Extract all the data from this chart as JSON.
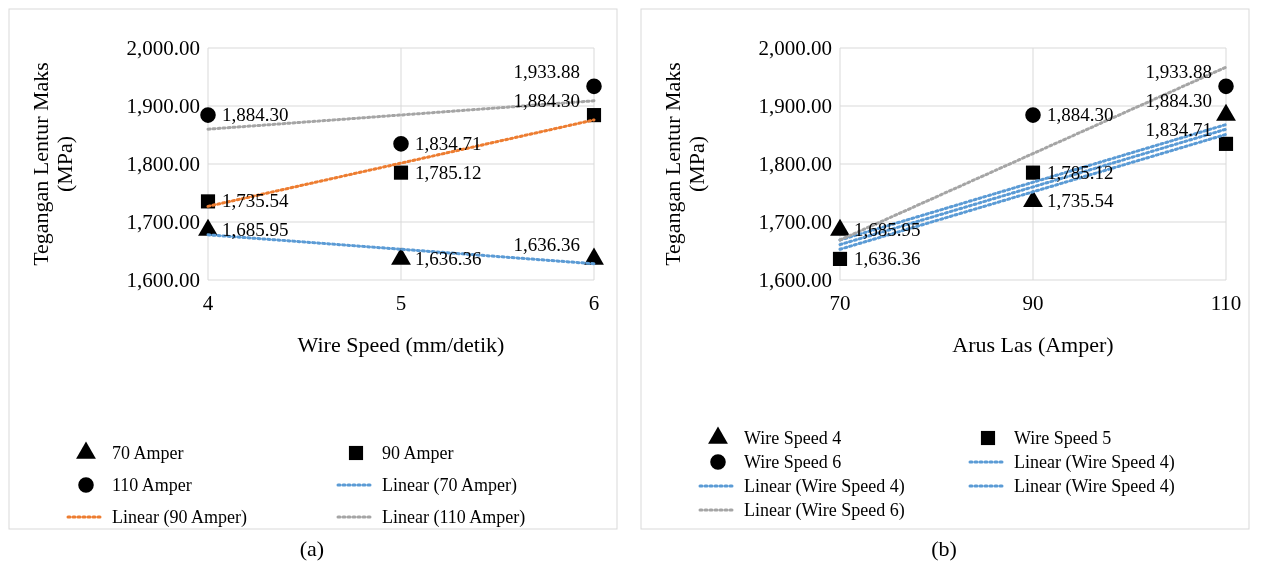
{
  "chart_data": [
    {
      "type": "scatter",
      "xlabel": "Wire Speed (mm/detik)",
      "ylabel": "Tegangan Lentur Maks (MPa)",
      "xlim": [
        4,
        6
      ],
      "xticks": [
        4,
        5,
        6
      ],
      "ylim": [
        1600,
        2000
      ],
      "yticks": [
        {
          "value": 1600,
          "label": "1,600.00"
        },
        {
          "value": 1700,
          "label": "1,700.00"
        },
        {
          "value": 1800,
          "label": "1,800.00"
        },
        {
          "value": 1900,
          "label": "1,900.00"
        },
        {
          "value": 2000,
          "label": "2,000.00"
        }
      ],
      "grid": true,
      "legend": "bottom",
      "annotations": [
        "(a)"
      ],
      "series": [
        {
          "name": "70 Amper",
          "marker": "triangle",
          "color": "#000000",
          "x": [
            4,
            5,
            6
          ],
          "values": [
            1685.95,
            1636.36,
            1636.36
          ],
          "value_labels": [
            "1,685.95",
            "1,636.36",
            "1,636.36"
          ]
        },
        {
          "name": "90 Amper",
          "marker": "square",
          "color": "#000000",
          "x": [
            4,
            5,
            6
          ],
          "values": [
            1735.54,
            1785.12,
            1884.3
          ],
          "value_labels": [
            "1,735.54",
            "1,785.12",
            "1,884.30"
          ]
        },
        {
          "name": "110 Amper",
          "marker": "circle",
          "color": "#000000",
          "x": [
            4,
            5,
            6
          ],
          "values": [
            1884.3,
            1834.71,
            1933.88
          ],
          "value_labels": [
            "1,884.30",
            "1,834.71",
            "1,933.88"
          ]
        },
        {
          "name": "Linear (70 Amper)",
          "type": "line",
          "line_style": "dotted",
          "color": "#5b9bd5",
          "x": [
            4,
            6
          ],
          "values": [
            1678,
            1628
          ]
        },
        {
          "name": "Linear (90 Amper)",
          "type": "line",
          "line_style": "dotted",
          "color": "#ed7d31",
          "x": [
            4,
            6
          ],
          "values": [
            1727,
            1876
          ]
        },
        {
          "name": "Linear (110 Amper)",
          "type": "line",
          "line_style": "dotted",
          "color": "#a5a5a5",
          "x": [
            4,
            6
          ],
          "values": [
            1860,
            1909
          ]
        }
      ]
    },
    {
      "type": "scatter",
      "xlabel": "Arus Las (Amper)",
      "ylabel": "Tegangan Lentur Maks (MPa)",
      "xlim": [
        70,
        110
      ],
      "xticks": [
        70,
        90,
        110
      ],
      "ylim": [
        1600,
        2000
      ],
      "yticks": [
        {
          "value": 1600,
          "label": "1,600.00"
        },
        {
          "value": 1700,
          "label": "1,700.00"
        },
        {
          "value": 1800,
          "label": "1,800.00"
        },
        {
          "value": 1900,
          "label": "1,900.00"
        },
        {
          "value": 2000,
          "label": "2,000.00"
        }
      ],
      "grid": true,
      "legend": "bottom",
      "annotations": [
        "(b)"
      ],
      "series": [
        {
          "name": "Wire Speed 4",
          "marker": "triangle",
          "color": "#000000",
          "x": [
            70,
            90,
            110
          ],
          "values": [
            1685.95,
            1735.54,
            1884.3
          ],
          "value_labels": [
            "1,685.95",
            "1,735.54",
            "1,884.30"
          ]
        },
        {
          "name": "Wire Speed 5",
          "marker": "square",
          "color": "#000000",
          "x": [
            70,
            90,
            110
          ],
          "values": [
            1636.36,
            1785.12,
            1834.71
          ],
          "value_labels": [
            "1,636.36",
            "1,785.12",
            "1,834.71"
          ]
        },
        {
          "name": "Wire Speed 6",
          "marker": "circle",
          "color": "#000000",
          "x": [
            90,
            110
          ],
          "values": [
            1884.3,
            1933.88
          ],
          "value_labels": [
            "1,884.30",
            "1,933.88"
          ]
        },
        {
          "name": "Linear (Wire Speed 4)",
          "type": "line",
          "line_style": "dotted",
          "color": "#5b9bd5",
          "x": [
            70,
            110
          ],
          "values": [
            1669,
            1868
          ]
        },
        {
          "name": "Linear (Wire Speed 4)",
          "type": "line",
          "line_style": "dotted",
          "color": "#5b9bd5",
          "x": [
            70,
            110
          ],
          "values": [
            1653,
            1851
          ]
        },
        {
          "name": "Linear (Wire Speed 4)",
          "type": "line",
          "line_style": "dotted",
          "color": "#5b9bd5",
          "x": [
            70,
            110
          ],
          "values": [
            1661,
            1860
          ]
        },
        {
          "name": "Linear (Wire Speed 6)",
          "type": "line",
          "line_style": "dotted",
          "color": "#a5a5a5",
          "x": [
            70,
            110
          ],
          "values": [
            1669,
            1967
          ]
        }
      ]
    }
  ]
}
